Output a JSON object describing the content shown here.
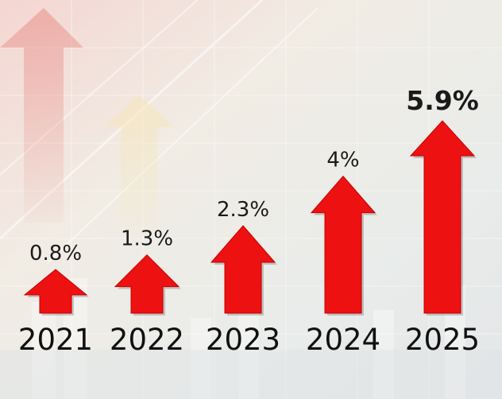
{
  "chart_data": {
    "type": "bar",
    "mark": "up-arrow",
    "categories": [
      "2021",
      "2022",
      "2023",
      "2024",
      "2025"
    ],
    "values": [
      0.8,
      1.3,
      2.3,
      4,
      5.9
    ],
    "value_labels": [
      "0.8%",
      "1.3%",
      "2.3%",
      "4%",
      "5.9%"
    ],
    "unit": "%",
    "title": "",
    "xlabel": "",
    "ylabel": "",
    "ylim": [
      0,
      5.9
    ],
    "grid": false,
    "legend": "none",
    "colors": {
      "arrow": "#ee1111",
      "arrow_dark": "#c40000",
      "text": "#111111",
      "background": "#ece9e6"
    }
  }
}
